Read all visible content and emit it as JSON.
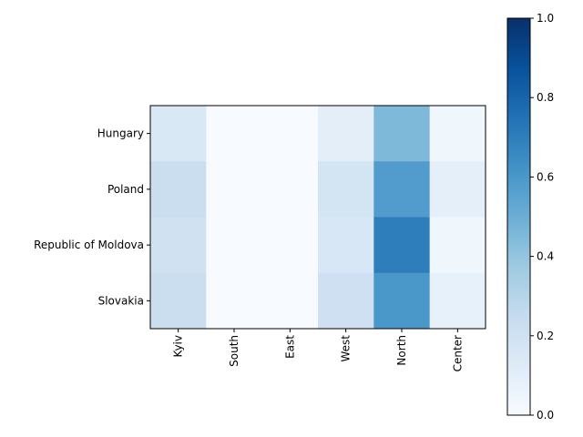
{
  "chart_data": {
    "type": "heatmap",
    "title": "",
    "xlabel": "",
    "ylabel": "",
    "x_categories": [
      "Kyiv",
      "South",
      "East",
      "West",
      "North",
      "Center"
    ],
    "y_categories": [
      "Hungary",
      "Poland",
      "Republic of Moldova",
      "Slovakia"
    ],
    "values": [
      [
        0.15,
        0.0,
        0.0,
        0.1,
        0.45,
        0.04
      ],
      [
        0.23,
        0.0,
        0.0,
        0.18,
        0.58,
        0.09
      ],
      [
        0.2,
        0.0,
        0.0,
        0.16,
        0.7,
        0.04
      ],
      [
        0.23,
        0.0,
        0.0,
        0.21,
        0.6,
        0.08
      ]
    ],
    "colormap": "Blues",
    "colorbar": {
      "range": [
        0,
        1
      ],
      "ticks": [
        "0.0",
        "0.2",
        "0.4",
        "0.6",
        "0.8",
        "1.0"
      ]
    },
    "x_tick_rotation": "vertical",
    "grid": false
  }
}
